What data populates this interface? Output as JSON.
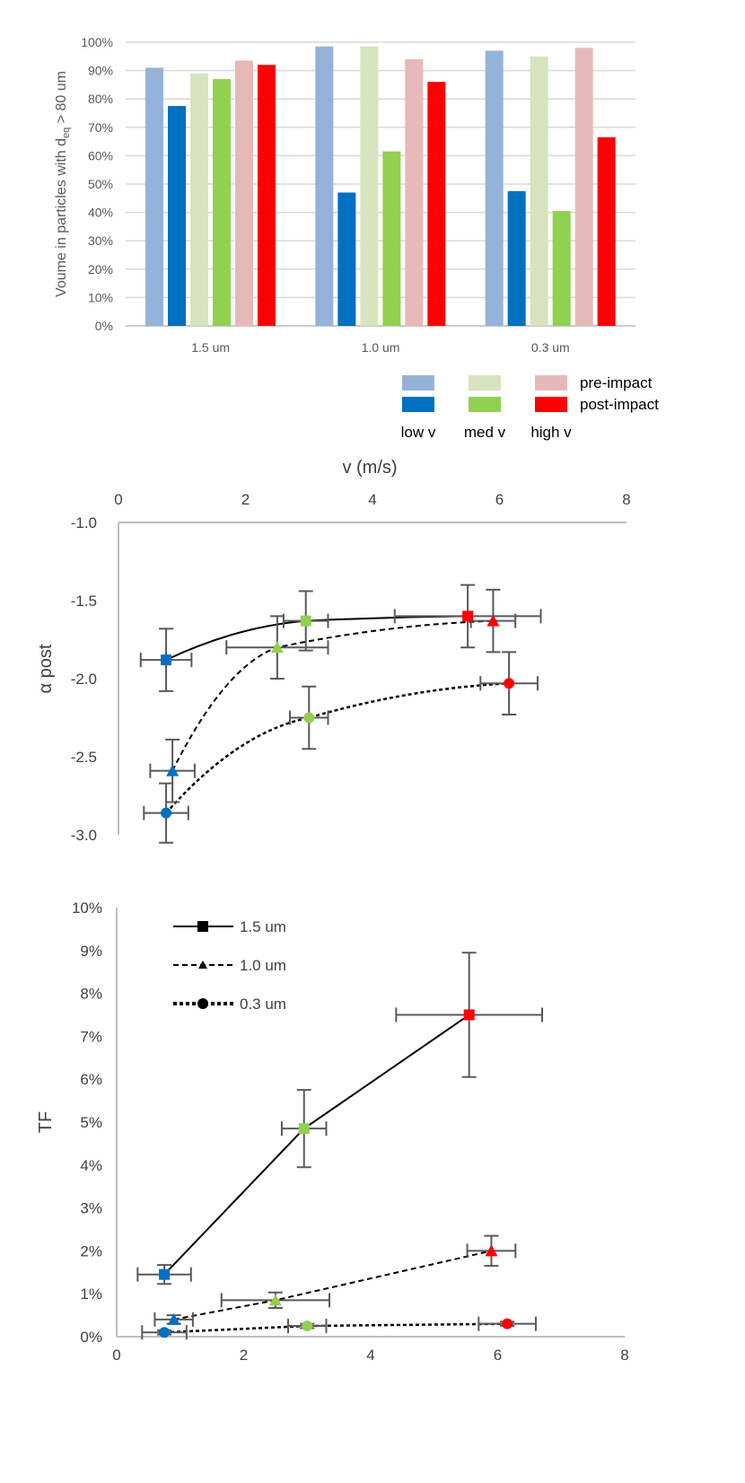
{
  "chart_data": [
    {
      "type": "bar",
      "ylabel_main": "Voume in particles  with d",
      "ylabel_sub": "eq",
      "ylabel_tail": " > 80 um",
      "categories": [
        "1.5 um",
        "1.0 um",
        "0.3 um"
      ],
      "ylim": [
        0,
        100
      ],
      "yticks": [
        "0%",
        "10%",
        "20%",
        "30%",
        "40%",
        "50%",
        "60%",
        "70%",
        "80%",
        "90%",
        "100%"
      ],
      "series": [
        {
          "name": "low v pre-impact",
          "color": "#95b3d7",
          "values": [
            91,
            98.5,
            97
          ]
        },
        {
          "name": "low v post-impact",
          "color": "#0070c0",
          "values": [
            77.5,
            47,
            47.5
          ]
        },
        {
          "name": "med v pre-impact",
          "color": "#d7e4bd",
          "values": [
            89,
            98.5,
            95
          ]
        },
        {
          "name": "med v post-impact",
          "color": "#92d050",
          "values": [
            87,
            61.5,
            40.5
          ]
        },
        {
          "name": "high v pre-impact",
          "color": "#e6b9b8",
          "values": [
            93.5,
            94,
            98
          ]
        },
        {
          "name": "high v post-impact",
          "color": "#ff0000",
          "values": [
            92,
            86,
            66.5
          ]
        }
      ],
      "legend": {
        "rows": [
          "pre-impact",
          "post-impact"
        ],
        "columns": [
          "low v",
          "med v",
          "high v"
        ]
      }
    },
    {
      "type": "scatter",
      "xlabel": "v (m/s)",
      "ylabel": "α post",
      "xlim": [
        0,
        8
      ],
      "ylim": [
        -3.0,
        -1.0
      ],
      "xticks": [
        "0",
        "2",
        "4",
        "6",
        "8"
      ],
      "yticks": [
        "-1.0",
        "-1.5",
        "-2.0",
        "-2.5",
        "-3.0"
      ],
      "series": [
        {
          "name": "1.5 um",
          "marker": "square",
          "line": "solid",
          "points": [
            {
              "x": 0.75,
              "y": -1.88,
              "xerr": 0.4,
              "yerr": 0.2,
              "color": "#0070c0"
            },
            {
              "x": 2.95,
              "y": -1.63,
              "xerr": 0.35,
              "yerr": 0.19,
              "color": "#92d050"
            },
            {
              "x": 5.5,
              "y": -1.6,
              "xerr": 1.15,
              "yerr": 0.2,
              "color": "#ff0000"
            }
          ]
        },
        {
          "name": "1.0 um",
          "marker": "triangle",
          "line": "dashed",
          "points": [
            {
              "x": 0.85,
              "y": -2.59,
              "xerr": 0.35,
              "yerr": 0.2,
              "color": "#0070c0"
            },
            {
              "x": 2.5,
              "y": -1.8,
              "xerr": 0.8,
              "yerr": 0.2,
              "color": "#92d050"
            },
            {
              "x": 5.9,
              "y": -1.63,
              "xerr": 0.35,
              "yerr": 0.2,
              "color": "#ff0000"
            }
          ]
        },
        {
          "name": "0.3 um",
          "marker": "circle",
          "line": "dotted",
          "points": [
            {
              "x": 0.75,
              "y": -2.86,
              "xerr": 0.35,
              "yerr": 0.19,
              "color": "#0070c0"
            },
            {
              "x": 3.0,
              "y": -2.25,
              "xerr": 0.3,
              "yerr": 0.2,
              "color": "#92d050"
            },
            {
              "x": 6.15,
              "y": -2.03,
              "xerr": 0.45,
              "yerr": 0.2,
              "color": "#ff0000"
            }
          ]
        }
      ]
    },
    {
      "type": "scatter",
      "xlabel": "",
      "ylabel": "TF",
      "xlim": [
        0,
        8
      ],
      "ylim": [
        0,
        10
      ],
      "xticks": [
        "0",
        "2",
        "4",
        "6",
        "8"
      ],
      "yticks": [
        "0%",
        "1%",
        "2%",
        "3%",
        "4%",
        "5%",
        "6%",
        "7%",
        "8%",
        "9%",
        "10%"
      ],
      "series": [
        {
          "name": "1.5 um",
          "marker": "square",
          "line": "solid",
          "points": [
            {
              "x": 0.75,
              "y": 1.45,
              "xerr": 0.42,
              "yerr": 0.22,
              "color": "#0070c0"
            },
            {
              "x": 2.95,
              "y": 4.85,
              "xerr": 0.35,
              "yerr": 0.9,
              "color": "#92d050"
            },
            {
              "x": 5.55,
              "y": 7.5,
              "xerr": 1.15,
              "yerr": 1.45,
              "color": "#ff0000"
            }
          ]
        },
        {
          "name": "1.0 um",
          "marker": "triangle",
          "line": "dashed",
          "points": [
            {
              "x": 0.9,
              "y": 0.4,
              "xerr": 0.3,
              "yerr": 0.1,
              "color": "#0070c0"
            },
            {
              "x": 2.5,
              "y": 0.85,
              "xerr": 0.85,
              "yerr": 0.18,
              "color": "#92d050"
            },
            {
              "x": 5.9,
              "y": 2.0,
              "xerr": 0.38,
              "yerr": 0.35,
              "color": "#ff0000"
            }
          ]
        },
        {
          "name": "0.3 um",
          "marker": "circle",
          "line": "dotted",
          "points": [
            {
              "x": 0.75,
              "y": 0.1,
              "xerr": 0.35,
              "yerr": 0.05,
              "color": "#0070c0"
            },
            {
              "x": 3.0,
              "y": 0.25,
              "xerr": 0.3,
              "yerr": 0.05,
              "color": "#92d050"
            },
            {
              "x": 6.15,
              "y": 0.3,
              "xerr": 0.45,
              "yerr": 0.05,
              "color": "#ff0000"
            }
          ]
        }
      ],
      "legend": [
        "1.5 um",
        "1.0 um",
        "0.3 um"
      ]
    }
  ]
}
